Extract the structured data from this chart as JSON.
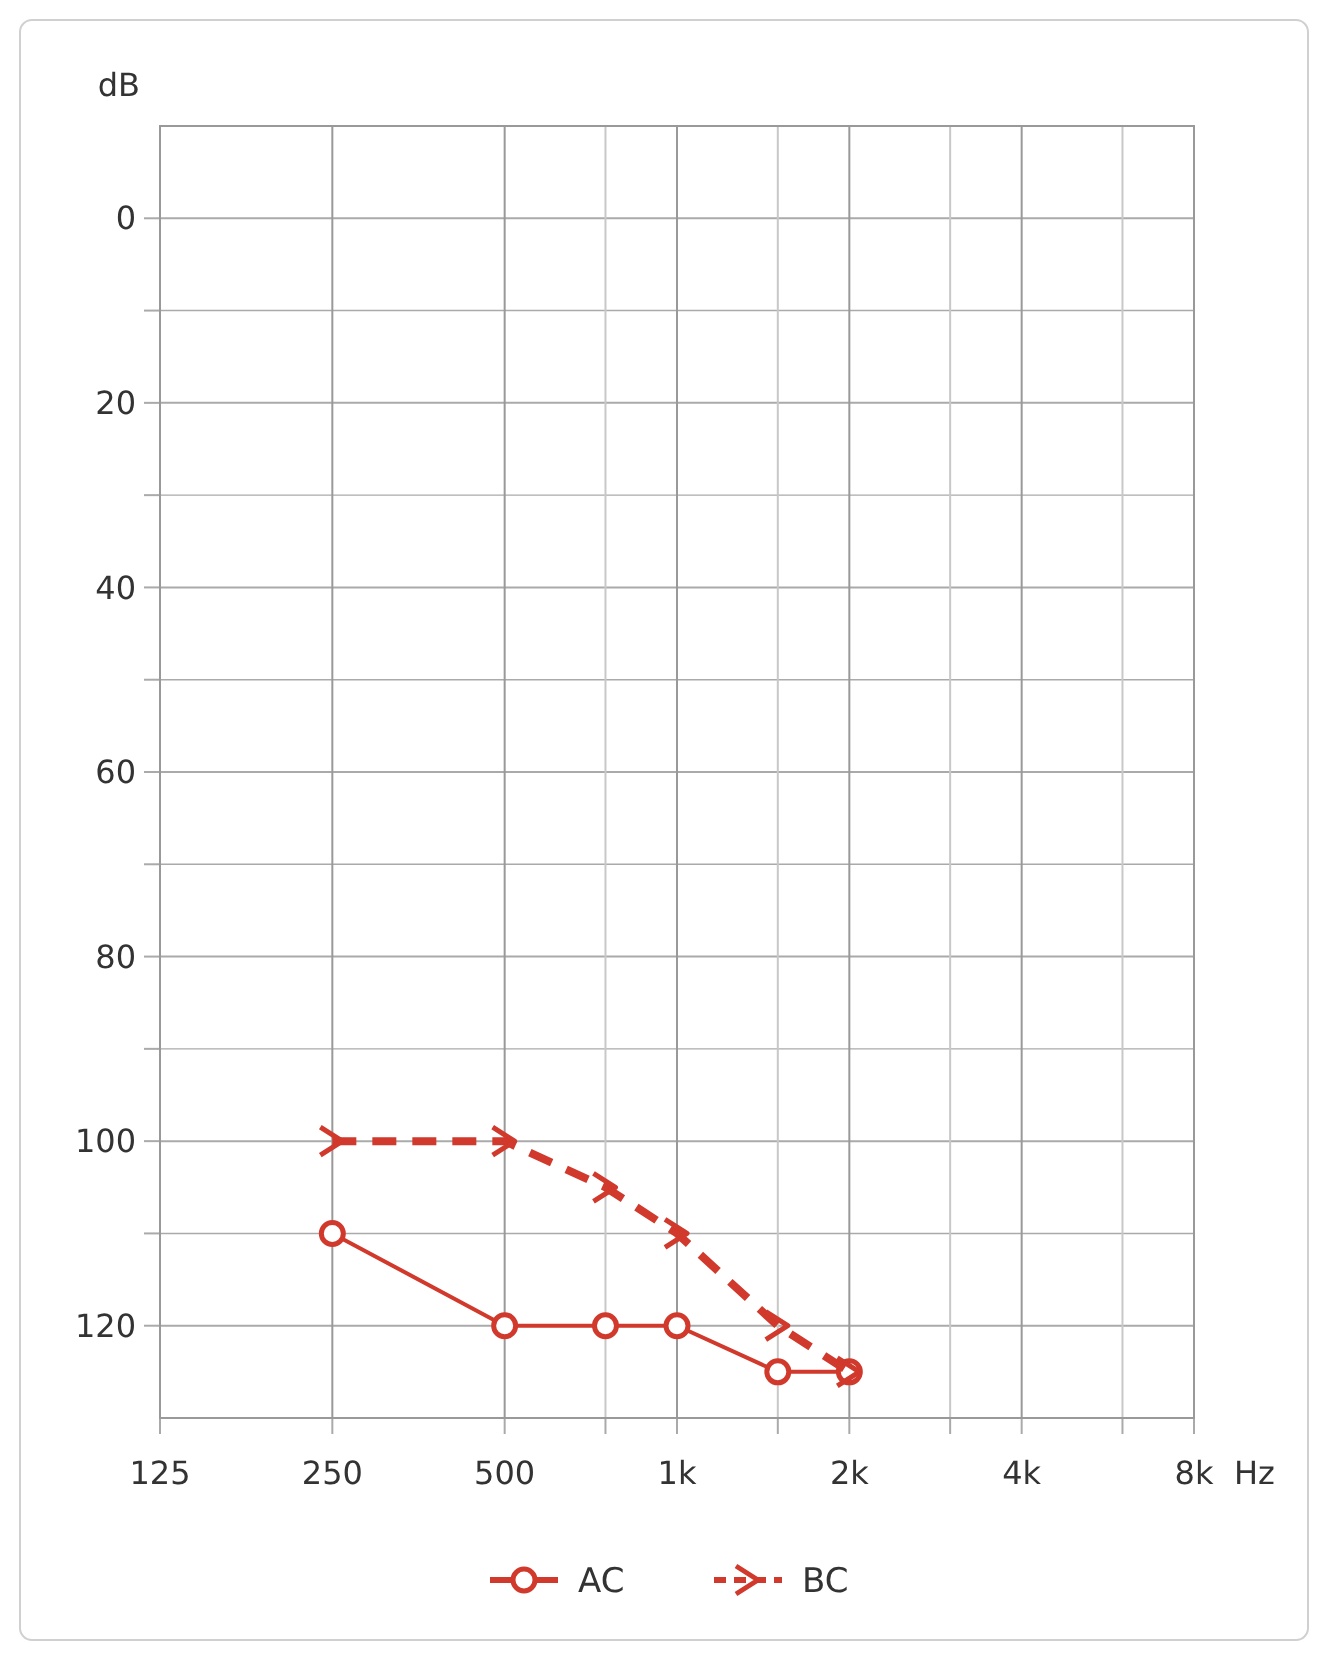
{
  "chart_data": {
    "type": "line",
    "xlabel": "Hz",
    "ylabel": "dB",
    "log": "x",
    "x": [
      250,
      500,
      750,
      1000,
      1500,
      2000
    ],
    "xlim": [
      125,
      8000
    ],
    "xticks": [
      125,
      250,
      500,
      {
        "value": 750,
        "label": null
      },
      {
        "value": 1000,
        "label": "1k"
      },
      {
        "value": 1500,
        "label": null
      },
      {
        "value": 2000,
        "label": "2k"
      },
      {
        "value": 3000,
        "label": null
      },
      {
        "value": 4000,
        "label": "4k"
      },
      {
        "value": 6000,
        "label": null
      },
      {
        "value": 8000,
        "label": "8k"
      }
    ],
    "ylim": [
      130,
      -10
    ],
    "yticks": [
      0,
      {
        "value": 10,
        "label": null
      },
      20,
      {
        "value": 30,
        "label": null
      },
      40,
      {
        "value": 50,
        "label": null
      },
      60,
      {
        "value": 70,
        "label": null
      },
      80,
      {
        "value": 90,
        "label": null
      },
      100,
      {
        "value": 110,
        "label": null
      },
      120
    ],
    "grid": true,
    "legend": "bottom",
    "series": [
      {
        "name": "AC",
        "color": "#d0392b",
        "marker": "circle",
        "line_style": "solid",
        "values": [
          110,
          120,
          120,
          120,
          125,
          125
        ]
      },
      {
        "name": "BC",
        "color": "#d0392b",
        "marker": "cross",
        "line_style": "dashed",
        "values": [
          100,
          100,
          105,
          110,
          120,
          125
        ]
      }
    ]
  }
}
